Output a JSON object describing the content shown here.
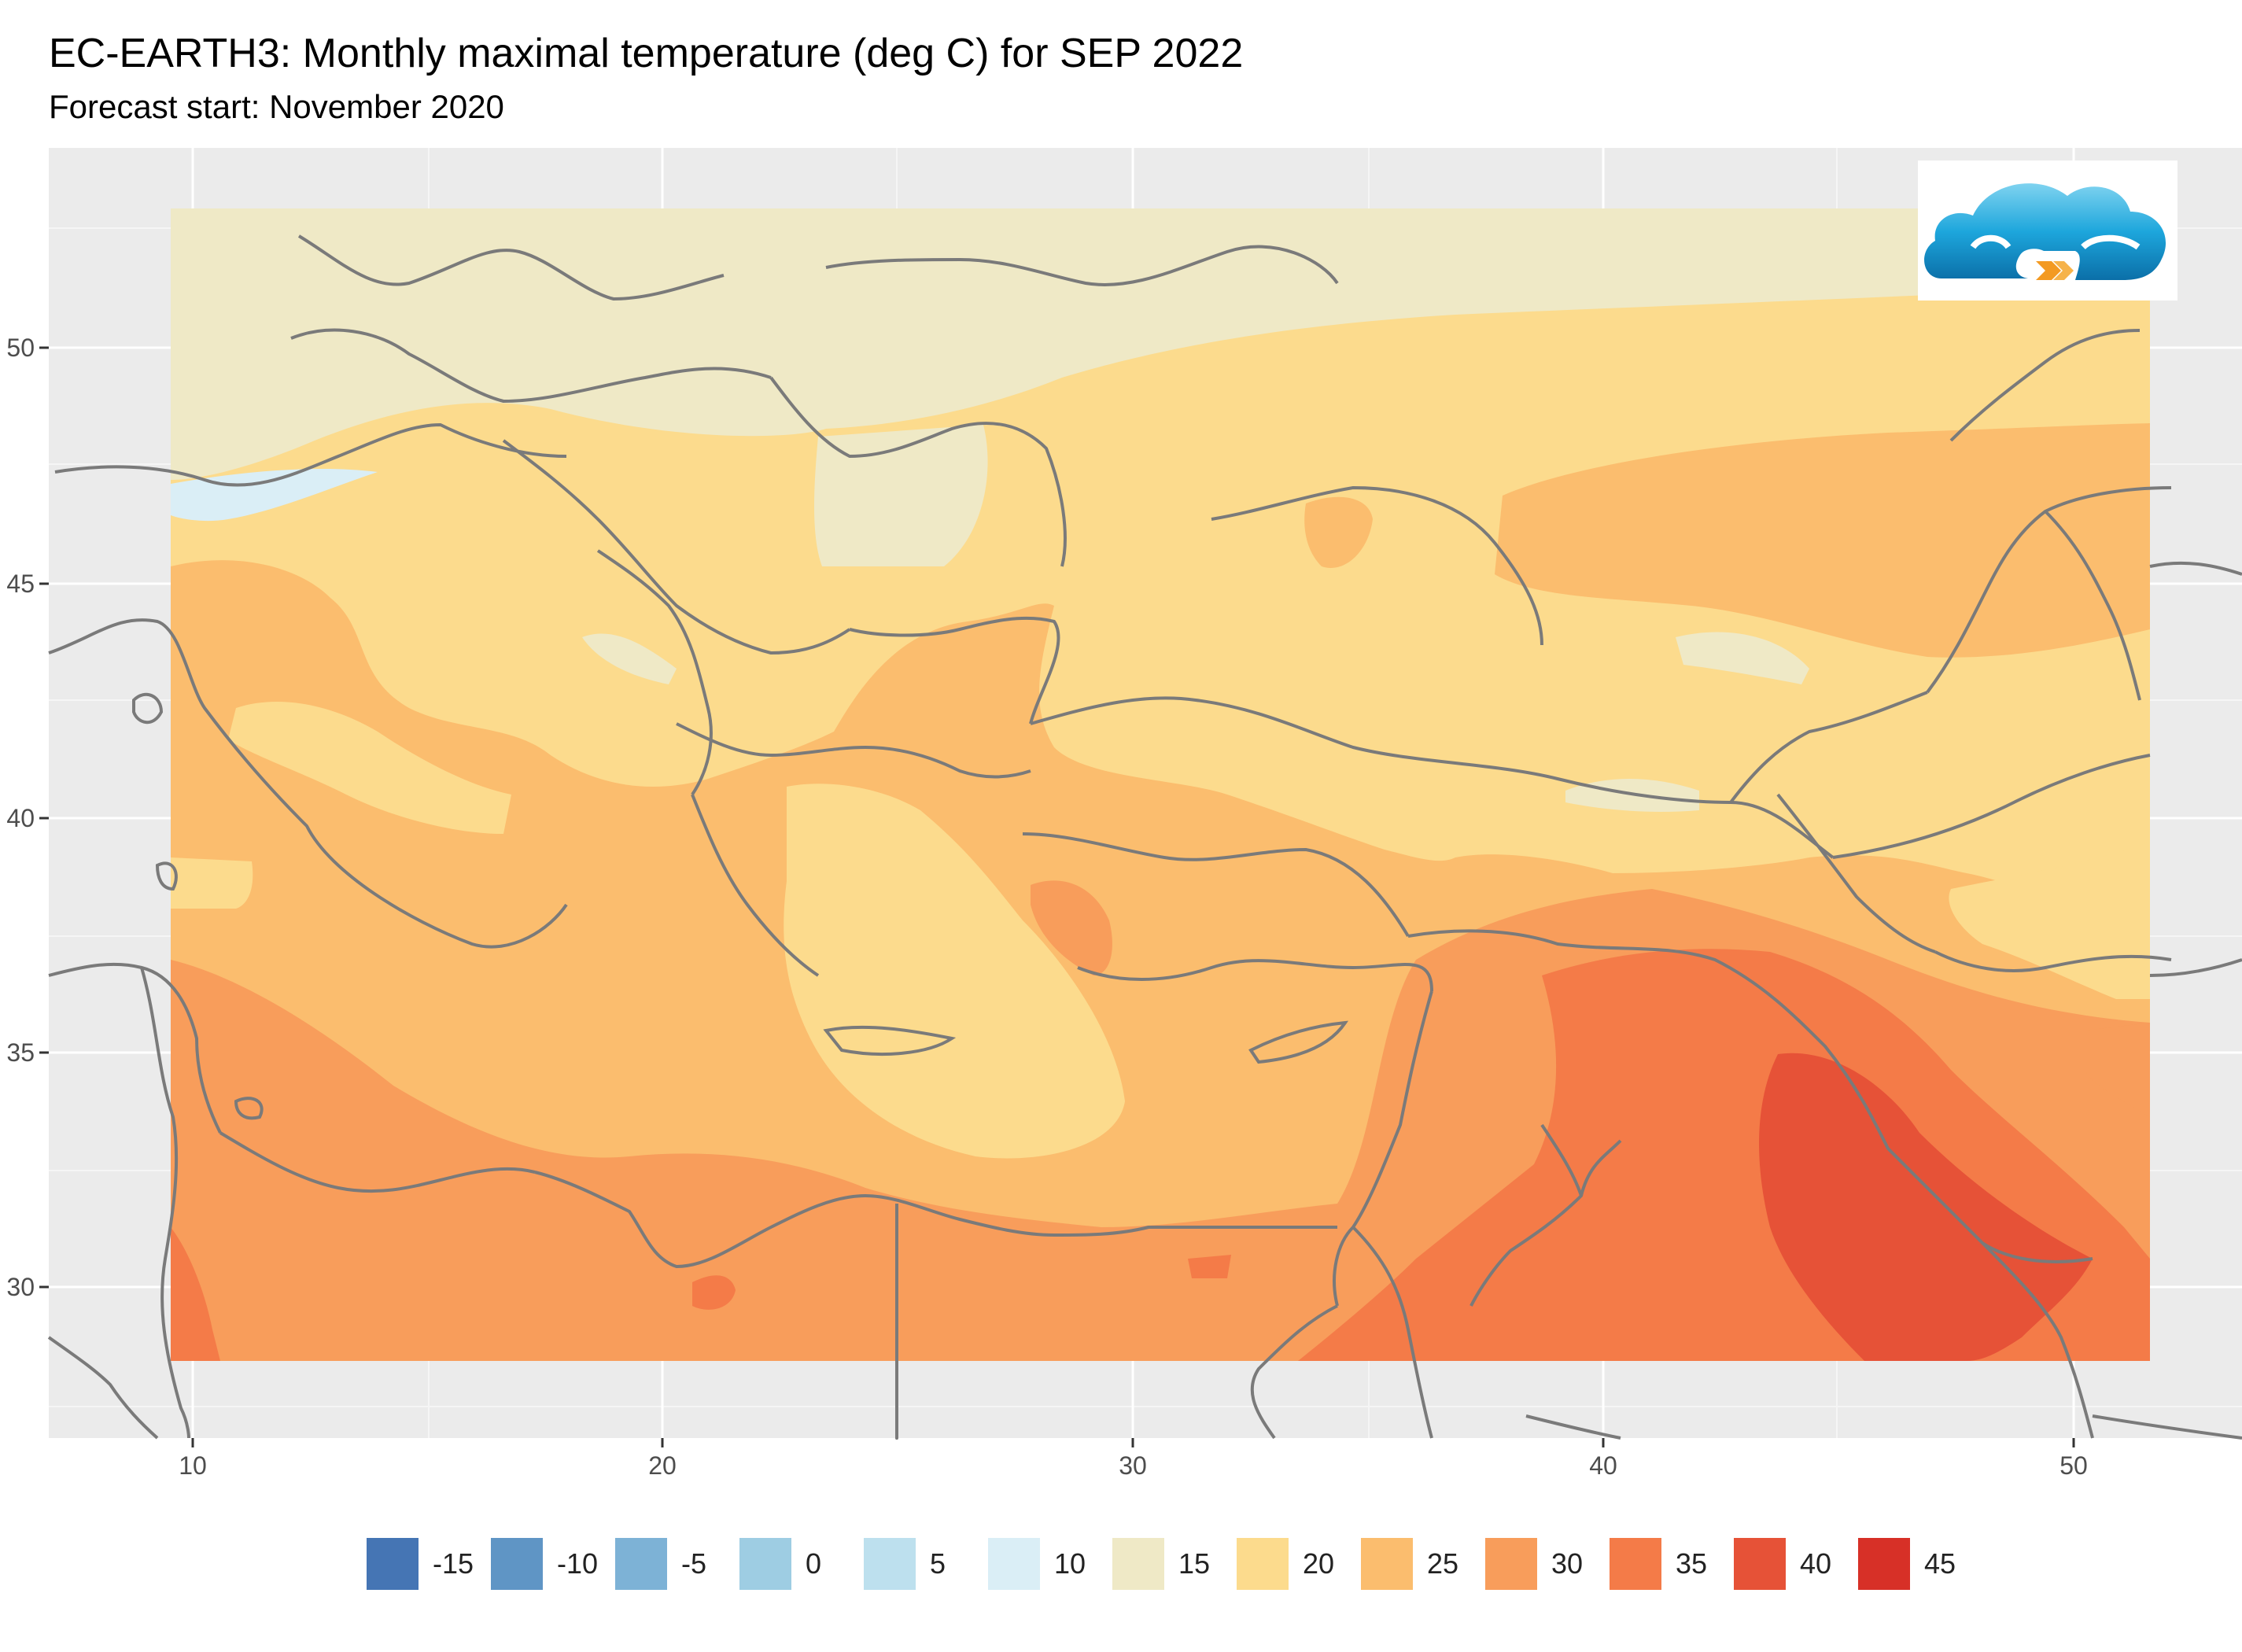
{
  "title": "EC-EARTH3: Monthly maximal temperature (deg C) for SEP 2022",
  "subtitle": "Forecast start: November 2020",
  "map": {
    "x_ticks": [
      "10",
      "20",
      "30",
      "40",
      "50"
    ],
    "y_ticks": [
      "50",
      "45",
      "40",
      "35",
      "30"
    ],
    "panel_background": "#ebebeb",
    "grid_color": "#ffffff",
    "border_color": "#7a7a7a"
  },
  "legend": {
    "items": [
      {
        "label": "-15",
        "color": "#4575b4"
      },
      {
        "label": "-10",
        "color": "#5f95c5"
      },
      {
        "label": "-5",
        "color": "#7db2d6"
      },
      {
        "label": "0",
        "color": "#9ecde3"
      },
      {
        "label": "5",
        "color": "#bde0ee"
      },
      {
        "label": "10",
        "color": "#daeef6"
      },
      {
        "label": "15",
        "color": "#efe9c6"
      },
      {
        "label": "20",
        "color": "#fcdb8d"
      },
      {
        "label": "25",
        "color": "#fbbd6e"
      },
      {
        "label": "30",
        "color": "#f89d5b"
      },
      {
        "label": "35",
        "color": "#f47b48"
      },
      {
        "label": "40",
        "color": "#e65237"
      },
      {
        "label": "45",
        "color": "#d73027"
      }
    ]
  },
  "logo": {
    "name": "cloud-logo"
  }
}
